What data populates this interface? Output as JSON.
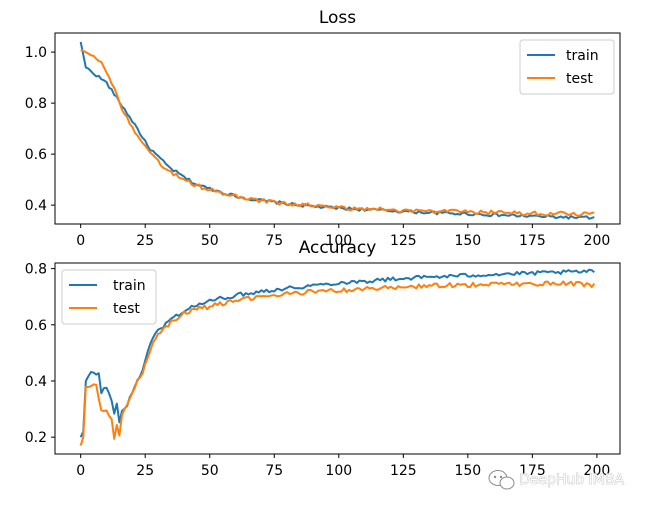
{
  "watermark": {
    "text": "DeepHub IMBA",
    "icon": "wechat-icon"
  },
  "chart_data": [
    {
      "type": "line",
      "title": "Loss",
      "xlabel": "",
      "ylabel": "",
      "xlim": [
        -9.95,
        208.95
      ],
      "ylim": [
        0.326,
        1.075
      ],
      "xticks": [
        0,
        25,
        50,
        75,
        100,
        125,
        150,
        175,
        200
      ],
      "yticks": [
        0.4,
        0.6,
        0.8,
        1.0
      ],
      "ytick_labels": [
        "0.4",
        "0.6",
        "0.8",
        "1.0"
      ],
      "legend_position": "top-right",
      "series": [
        {
          "name": "train",
          "color": "#1f77b4",
          "anchors": [
            [
              0,
              1.04
            ],
            [
              2,
              0.94
            ],
            [
              6,
              0.91
            ],
            [
              10,
              0.88
            ],
            [
              14,
              0.82
            ],
            [
              18,
              0.76
            ],
            [
              22,
              0.7
            ],
            [
              26,
              0.63
            ],
            [
              30,
              0.59
            ],
            [
              34,
              0.55
            ],
            [
              40,
              0.51
            ],
            [
              45,
              0.48
            ],
            [
              50,
              0.465
            ],
            [
              55,
              0.45
            ],
            [
              60,
              0.435
            ],
            [
              65,
              0.425
            ],
            [
              70,
              0.418
            ],
            [
              75,
              0.412
            ],
            [
              80,
              0.405
            ],
            [
              90,
              0.395
            ],
            [
              100,
              0.388
            ],
            [
              110,
              0.383
            ],
            [
              120,
              0.378
            ],
            [
              130,
              0.373
            ],
            [
              140,
              0.369
            ],
            [
              150,
              0.366
            ],
            [
              160,
              0.362
            ],
            [
              170,
              0.358
            ],
            [
              180,
              0.355
            ],
            [
              190,
              0.352
            ],
            [
              199,
              0.35
            ]
          ],
          "noise": 0.006
        },
        {
          "name": "test",
          "color": "#ff7f0e",
          "anchors": [
            [
              0,
              1.01
            ],
            [
              2,
              1.0
            ],
            [
              5,
              0.99
            ],
            [
              8,
              0.96
            ],
            [
              12,
              0.88
            ],
            [
              16,
              0.78
            ],
            [
              20,
              0.7
            ],
            [
              24,
              0.64
            ],
            [
              28,
              0.59
            ],
            [
              32,
              0.55
            ],
            [
              38,
              0.51
            ],
            [
              44,
              0.48
            ],
            [
              50,
              0.46
            ],
            [
              55,
              0.445
            ],
            [
              60,
              0.435
            ],
            [
              65,
              0.425
            ],
            [
              70,
              0.418
            ],
            [
              75,
              0.41
            ],
            [
              80,
              0.405
            ],
            [
              90,
              0.398
            ],
            [
              100,
              0.39
            ],
            [
              110,
              0.386
            ],
            [
              120,
              0.382
            ],
            [
              130,
              0.378
            ],
            [
              140,
              0.375
            ],
            [
              150,
              0.373
            ],
            [
              160,
              0.371
            ],
            [
              170,
              0.369
            ],
            [
              180,
              0.367
            ],
            [
              190,
              0.366
            ],
            [
              199,
              0.365
            ]
          ],
          "noise": 0.008
        }
      ]
    },
    {
      "type": "line",
      "title": "Accuracy",
      "xlabel": "",
      "ylabel": "",
      "xlim": [
        -9.95,
        208.95
      ],
      "ylim": [
        0.14,
        0.82
      ],
      "xticks": [
        0,
        25,
        50,
        75,
        100,
        125,
        150,
        175,
        200
      ],
      "yticks": [
        0.2,
        0.4,
        0.6,
        0.8
      ],
      "ytick_labels": [
        "0.2",
        "0.4",
        "0.6",
        "0.8"
      ],
      "legend_position": "top-left",
      "series": [
        {
          "name": "train",
          "color": "#1f77b4",
          "anchors": [
            [
              0,
              0.2
            ],
            [
              1,
              0.22
            ],
            [
              2,
              0.4
            ],
            [
              4,
              0.43
            ],
            [
              6,
              0.42
            ],
            [
              7,
              0.43
            ],
            [
              8,
              0.36
            ],
            [
              10,
              0.38
            ],
            [
              12,
              0.33
            ],
            [
              13,
              0.28
            ],
            [
              14,
              0.32
            ],
            [
              15,
              0.25
            ],
            [
              16,
              0.3
            ],
            [
              18,
              0.31
            ],
            [
              20,
              0.36
            ],
            [
              22,
              0.4
            ],
            [
              24,
              0.44
            ],
            [
              26,
              0.51
            ],
            [
              28,
              0.55
            ],
            [
              30,
              0.58
            ],
            [
              35,
              0.62
            ],
            [
              40,
              0.65
            ],
            [
              45,
              0.67
            ],
            [
              50,
              0.685
            ],
            [
              55,
              0.695
            ],
            [
              60,
              0.705
            ],
            [
              70,
              0.72
            ],
            [
              80,
              0.73
            ],
            [
              90,
              0.74
            ],
            [
              100,
              0.75
            ],
            [
              110,
              0.755
            ],
            [
              120,
              0.762
            ],
            [
              130,
              0.768
            ],
            [
              140,
              0.772
            ],
            [
              150,
              0.776
            ],
            [
              160,
              0.78
            ],
            [
              170,
              0.782
            ],
            [
              180,
              0.785
            ],
            [
              190,
              0.788
            ],
            [
              199,
              0.79
            ]
          ],
          "noise": 0.007
        },
        {
          "name": "test",
          "color": "#ff7f0e",
          "anchors": [
            [
              0,
              0.17
            ],
            [
              1,
              0.2
            ],
            [
              2,
              0.38
            ],
            [
              4,
              0.385
            ],
            [
              6,
              0.38
            ],
            [
              8,
              0.3
            ],
            [
              10,
              0.3
            ],
            [
              12,
              0.26
            ],
            [
              13,
              0.2
            ],
            [
              14,
              0.24
            ],
            [
              15,
              0.2
            ],
            [
              16,
              0.28
            ],
            [
              18,
              0.31
            ],
            [
              20,
              0.35
            ],
            [
              22,
              0.4
            ],
            [
              24,
              0.43
            ],
            [
              26,
              0.49
            ],
            [
              28,
              0.54
            ],
            [
              30,
              0.57
            ],
            [
              35,
              0.61
            ],
            [
              40,
              0.64
            ],
            [
              45,
              0.655
            ],
            [
              50,
              0.665
            ],
            [
              55,
              0.675
            ],
            [
              60,
              0.685
            ],
            [
              70,
              0.7
            ],
            [
              80,
              0.71
            ],
            [
              90,
              0.718
            ],
            [
              100,
              0.722
            ],
            [
              110,
              0.728
            ],
            [
              120,
              0.732
            ],
            [
              130,
              0.736
            ],
            [
              140,
              0.74
            ],
            [
              150,
              0.742
            ],
            [
              160,
              0.745
            ],
            [
              170,
              0.745
            ],
            [
              180,
              0.747
            ],
            [
              190,
              0.748
            ],
            [
              199,
              0.74
            ]
          ],
          "noise": 0.008
        }
      ]
    }
  ]
}
